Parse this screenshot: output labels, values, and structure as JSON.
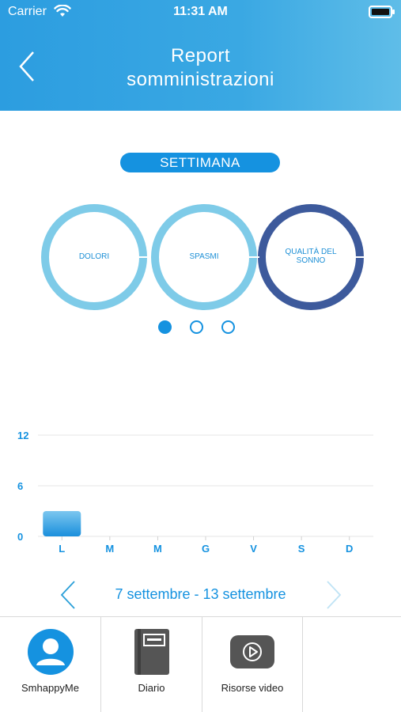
{
  "status_bar": {
    "carrier": "Carrier",
    "time": "11:31 AM"
  },
  "header": {
    "title_line1": "Report",
    "title_line2": "somministrazioni"
  },
  "period": {
    "label": "SETTIMANA"
  },
  "rings": [
    {
      "label": "DOLORI",
      "color": "#7ecbe8"
    },
    {
      "label": "SPASMI",
      "color": "#7ecbe8"
    },
    {
      "label_line1": "QUALITÀ DEL",
      "label_line2": "SONNO",
      "color": "#3d5a9c"
    }
  ],
  "pager": {
    "pages": 3,
    "active": 0
  },
  "chart_data": {
    "type": "bar",
    "categories": [
      "L",
      "M",
      "M",
      "G",
      "V",
      "S",
      "D"
    ],
    "values": [
      3,
      0,
      0,
      0,
      0,
      0,
      0
    ],
    "yticks": [
      0,
      6,
      12
    ],
    "ylim": [
      0,
      12
    ],
    "bar_color": "#4aa9e6",
    "grid": true
  },
  "week_nav": {
    "label": "7 settembre - 13 settembre"
  },
  "tabbar": {
    "items": [
      {
        "label": "SmhappyMe",
        "icon": "profile-icon"
      },
      {
        "label": "Diario",
        "icon": "diary-icon"
      },
      {
        "label": "Risorse video",
        "icon": "video-icon"
      }
    ]
  }
}
